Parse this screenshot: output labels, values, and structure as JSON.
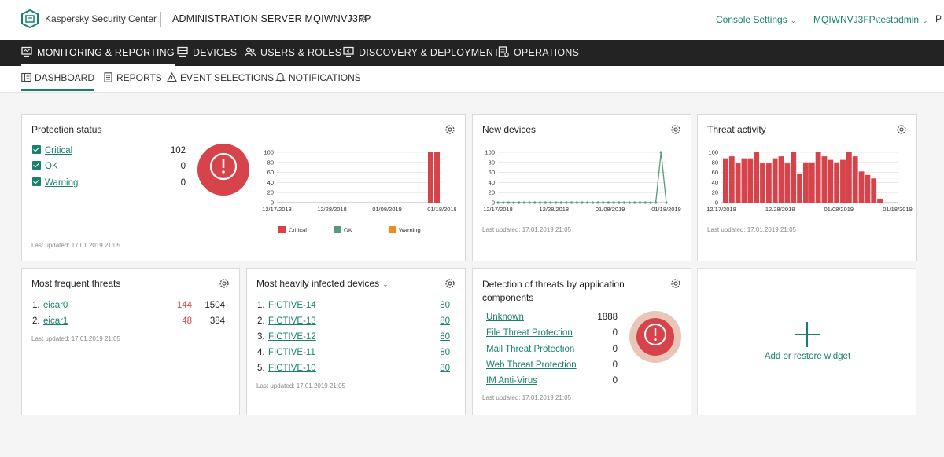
{
  "header": {
    "brand": "Kaspersky Security Center",
    "server": "ADMINISTRATION SERVER MQIWNVJ3FP",
    "console_settings": "Console Settings",
    "user": "MQIWNVJ3FP\\testadmin",
    "edge_letter": "P"
  },
  "main_nav": [
    {
      "label": "MONITORING & REPORTING",
      "icon": "monitor-icon"
    },
    {
      "label": "DEVICES",
      "icon": "devices-icon"
    },
    {
      "label": "USERS & ROLES",
      "icon": "users-icon"
    },
    {
      "label": "DISCOVERY & DEPLOYMENT",
      "icon": "discovery-icon"
    },
    {
      "label": "OPERATIONS",
      "icon": "operations-icon"
    }
  ],
  "sub_nav": [
    {
      "label": "DASHBOARD",
      "icon": "dashboard-icon"
    },
    {
      "label": "REPORTS",
      "icon": "report-icon"
    },
    {
      "label": "EVENT SELECTIONS",
      "icon": "event-icon"
    },
    {
      "label": "NOTIFICATIONS",
      "icon": "bell-icon"
    }
  ],
  "colors": {
    "accent": "#19806f",
    "critical": "#d7434b",
    "ok": "#5a9a7a",
    "warning": "#ef8c1c",
    "nav_bg": "#232323"
  },
  "protection": {
    "title": "Protection status",
    "items": [
      {
        "label": "Critical",
        "value": "102"
      },
      {
        "label": "OK",
        "value": "0"
      },
      {
        "label": "Warning",
        "value": "0"
      }
    ],
    "updated": "Last updated: 17.01.2019 21:05"
  },
  "new_devices": {
    "title": "New devices",
    "updated": "Last updated: 17.01.2019 21:05"
  },
  "threat_activity": {
    "title": "Threat activity",
    "updated": "Last updated: 17.01.2019 21:05"
  },
  "frequent_threats": {
    "title": "Most frequent threats",
    "items": [
      {
        "index": "1.",
        "name": "eicar0",
        "count": "144",
        "total": "1504"
      },
      {
        "index": "2.",
        "name": "eicar1",
        "count": "48",
        "total": "384"
      }
    ],
    "updated": "Last updated: 17.01.2019 21:05"
  },
  "infected_devices": {
    "title": "Most heavily infected devices",
    "items": [
      {
        "index": "1.",
        "name": "FICTIVE-14",
        "value": "80"
      },
      {
        "index": "2.",
        "name": "FICTIVE-13",
        "value": "80"
      },
      {
        "index": "3.",
        "name": "FICTIVE-12",
        "value": "80"
      },
      {
        "index": "4.",
        "name": "FICTIVE-11",
        "value": "80"
      },
      {
        "index": "5.",
        "name": "FICTIVE-10",
        "value": "80"
      }
    ],
    "updated": "Last updated: 17.01.2019 21:05"
  },
  "detection": {
    "title_line1": "Detection of threats by application",
    "title_line2": "components",
    "items": [
      {
        "label": "Unknown",
        "value": "1888"
      },
      {
        "label": "File Threat Protection",
        "value": "0"
      },
      {
        "label": "Mail Threat Protection",
        "value": "0"
      },
      {
        "label": "Web Threat Protection",
        "value": "0"
      },
      {
        "label": "IM Anti-Virus",
        "value": "0"
      }
    ],
    "updated": "Last updated: 17.01.2019 21:05"
  },
  "add_widget": {
    "label": "Add or restore widget"
  },
  "chart_data": [
    {
      "type": "bar",
      "name_ref": "protection-status-chart",
      "x_ticks": [
        "12/17/2018",
        "12/28/2018",
        "01/08/2019",
        "01/18/2019"
      ],
      "y_ticks": [
        "0",
        "20",
        "40",
        "60",
        "80",
        "100"
      ],
      "ylim": [
        0,
        100
      ],
      "legend": [
        "Critical",
        "OK",
        "Warning"
      ],
      "legend_position": "bottom",
      "series": [
        {
          "name": "Critical",
          "values": [
            100,
            100
          ]
        }
      ],
      "x": [
        "01/17/2019",
        "01/18/2019"
      ]
    },
    {
      "type": "line",
      "name_ref": "new-devices-chart",
      "x_ticks": [
        "12/17/2018",
        "12/28/2018",
        "01/08/2019",
        "01/18/2019"
      ],
      "y_ticks": [
        "0",
        "20",
        "40",
        "60",
        "80",
        "100"
      ],
      "ylim": [
        0,
        100
      ],
      "x": [
        "12/17/2018",
        "12/18/2018",
        "12/19/2018",
        "12/20/2018",
        "12/21/2018",
        "12/22/2018",
        "12/23/2018",
        "12/24/2018",
        "12/25/2018",
        "12/26/2018",
        "12/27/2018",
        "12/28/2018",
        "12/29/2018",
        "12/30/2018",
        "12/31/2018",
        "01/01/2019",
        "01/02/2019",
        "01/03/2019",
        "01/04/2019",
        "01/05/2019",
        "01/06/2019",
        "01/07/2019",
        "01/08/2019",
        "01/09/2019",
        "01/10/2019",
        "01/11/2019",
        "01/12/2019",
        "01/13/2019",
        "01/14/2019",
        "01/15/2019",
        "01/16/2019",
        "01/17/2019",
        "01/18/2019"
      ],
      "values": [
        0,
        0,
        0,
        0,
        0,
        0,
        0,
        0,
        0,
        0,
        0,
        0,
        0,
        0,
        0,
        0,
        0,
        0,
        0,
        0,
        0,
        0,
        0,
        0,
        0,
        0,
        0,
        0,
        0,
        0,
        0,
        102,
        0
      ]
    },
    {
      "type": "bar",
      "name_ref": "threat-activity-chart",
      "x_ticks": [
        "12/17/2018",
        "12/28/2018",
        "01/08/2019",
        "01/18/2019"
      ],
      "y_ticks": [
        "0",
        "20",
        "40",
        "60",
        "80",
        "100"
      ],
      "ylim": [
        0,
        100
      ],
      "values": [
        88,
        92,
        78,
        88,
        88,
        105,
        78,
        78,
        88,
        92,
        78,
        105,
        58,
        80,
        80,
        100,
        92,
        85,
        80,
        85,
        100,
        92,
        62,
        55,
        48,
        8
      ]
    }
  ]
}
